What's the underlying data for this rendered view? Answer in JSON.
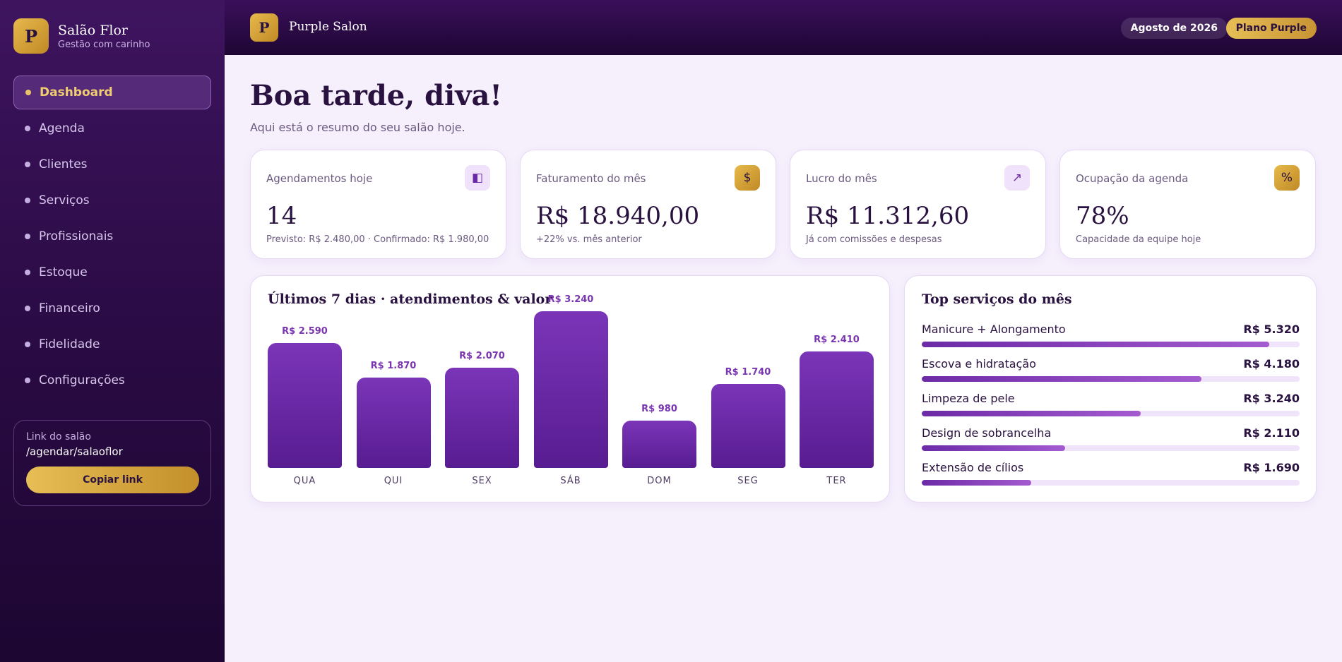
{
  "sidebar": {
    "brand_initial": "P",
    "brand_name": "Salão Flor",
    "brand_subtitle": "Gestão com carinho",
    "nav": [
      {
        "label": "Dashboard",
        "active": true
      },
      {
        "label": "Agenda"
      },
      {
        "label": "Clientes"
      },
      {
        "label": "Serviços"
      },
      {
        "label": "Profissionais"
      },
      {
        "label": "Estoque"
      },
      {
        "label": "Financeiro"
      },
      {
        "label": "Fidelidade"
      },
      {
        "label": "Configurações"
      }
    ],
    "link_box": {
      "label": "Link do salão",
      "value": "/agendar/salaoflor",
      "button": "Copiar link"
    }
  },
  "header": {
    "logo_initial": "P",
    "title": "Purple Salon",
    "month": "Agosto de 2026",
    "plan": "Plano Purple"
  },
  "main": {
    "greeting": "Boa tarde, diva!",
    "subtitle": "Aqui está o resumo do seu salão hoje.",
    "kpis": [
      {
        "label": "Agendamentos hoje",
        "value": "14",
        "note": "Previsto: R$ 2.480,00 · Confirmado: R$ 1.980,00",
        "icon": "◧",
        "icon_name": "calendar-icon"
      },
      {
        "label": "Faturamento do mês",
        "value": "R$ 18.940,00",
        "note": "+22% vs. mês anterior",
        "icon": "$",
        "icon_name": "dollar-icon"
      },
      {
        "label": "Lucro do mês",
        "value": "R$ 11.312,60",
        "note": "Já com comissões e despesas",
        "icon": "↗",
        "icon_name": "trend-up-icon"
      },
      {
        "label": "Ocupação da agenda",
        "value": "78%",
        "note": "Capacidade da equipe hoje",
        "icon": "%",
        "icon_name": "percent-icon"
      }
    ]
  },
  "chart_data": {
    "type": "bar",
    "title": "Últimos 7 dias · atendimentos & valor",
    "categories": [
      "QUA",
      "QUI",
      "SEX",
      "SÁB",
      "DOM",
      "SEG",
      "TER"
    ],
    "values": [
      2590,
      1870,
      2070,
      3240,
      980,
      1740,
      2410
    ],
    "value_labels": [
      "R$ 2.590",
      "R$ 1.870",
      "R$ 2.070",
      "R$ 3.240",
      "R$ 980",
      "R$ 1.740",
      "R$ 2.410"
    ],
    "ylim": [
      0,
      3240
    ],
    "grid": false,
    "color": "#6a28a8"
  },
  "top_services": {
    "title": "Top serviços do mês",
    "items": [
      {
        "name": "Manicure + Alongamento",
        "value": "R$ 5.320",
        "share": 0.92
      },
      {
        "name": "Escova e hidratação",
        "value": "R$ 4.180",
        "share": 0.74
      },
      {
        "name": "Limpeza de pele",
        "value": "R$ 3.240",
        "share": 0.58
      },
      {
        "name": "Design de sobrancelha",
        "value": "R$ 2.110",
        "share": 0.38
      },
      {
        "name": "Extensão de cílios",
        "value": "R$ 1.690",
        "share": 0.29
      }
    ]
  }
}
